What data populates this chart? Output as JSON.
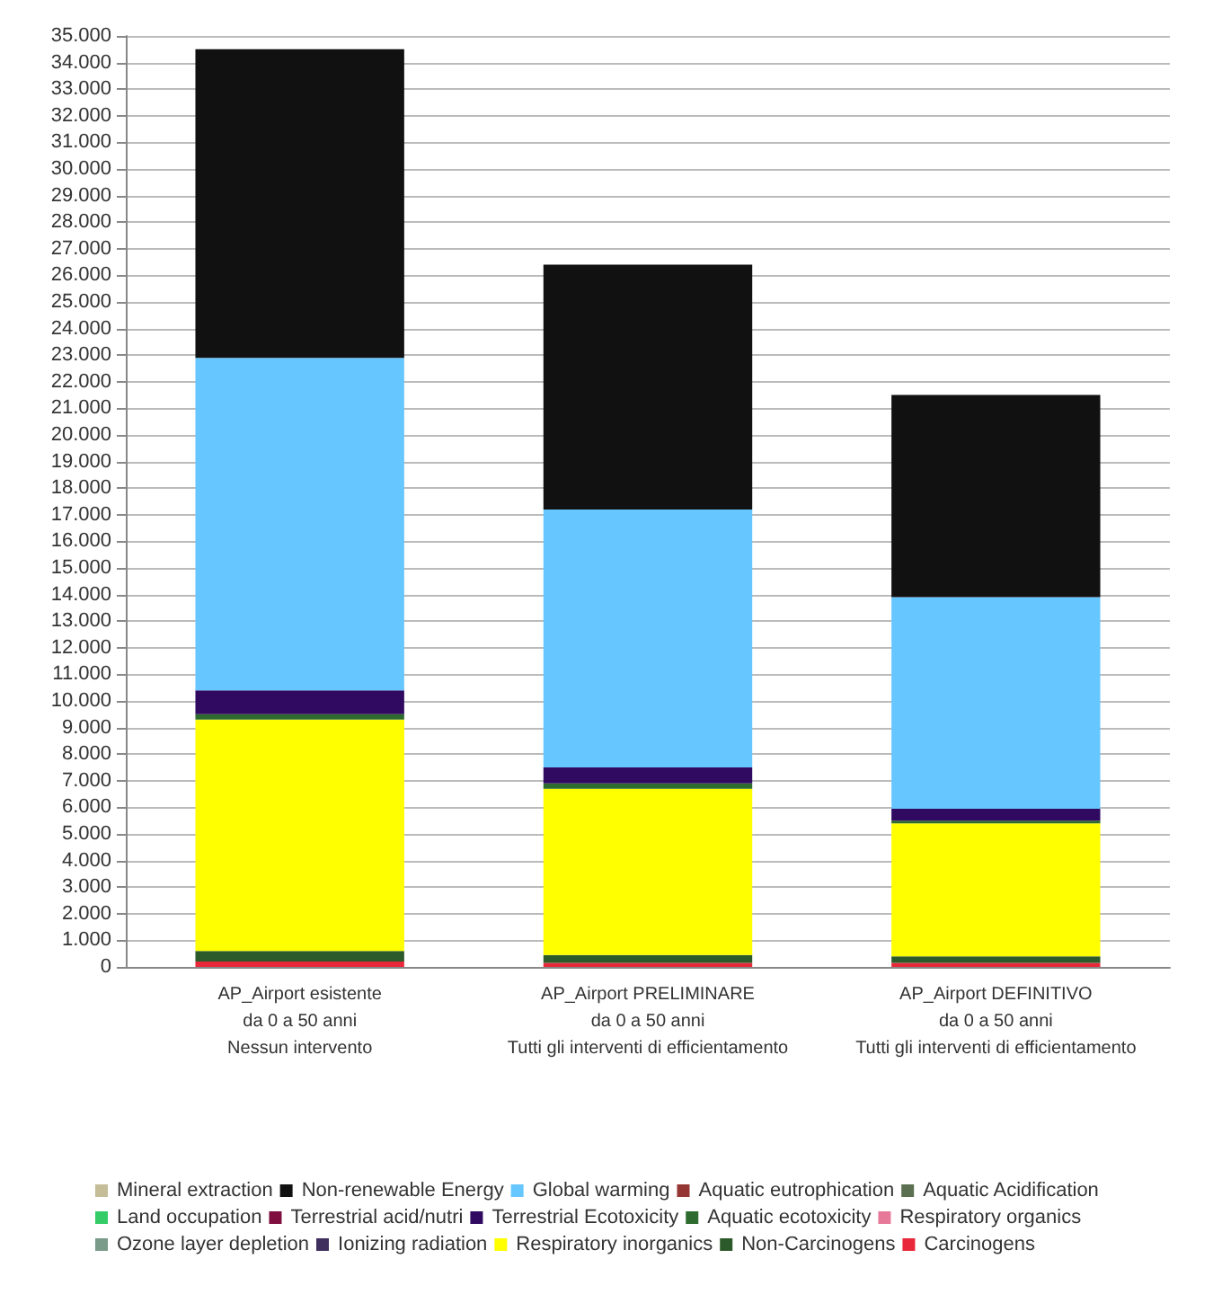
{
  "chart_data": {
    "type": "bar",
    "stacked": true,
    "categories": [
      "AP_Airport esistente\nda 0 a 50 anni\nNessun intervento",
      "AP_Airport PRELIMINARE\nda 0 a 50 anni\nTutti gli interventi di efficientamento",
      "AP_Airport DEFINITIVO\nda 0 a 50 anni\nTutti gli interventi di efficientamento"
    ],
    "series": [
      {
        "name": "Carcinogens",
        "color": "#e8283a",
        "values": [
          200,
          150,
          150
        ]
      },
      {
        "name": "Non-Carcinogens",
        "color": "#2d5a2a",
        "values": [
          400,
          300,
          250
        ]
      },
      {
        "name": "Respiratory inorganics",
        "color": "#ffff00",
        "values": [
          8700,
          6250,
          5000
        ]
      },
      {
        "name": "Ionizing radiation",
        "color": "#3f2f5f",
        "values": [
          0,
          0,
          0
        ]
      },
      {
        "name": "Ozone layer depletion",
        "color": "#7a9a8a",
        "values": [
          0,
          0,
          0
        ]
      },
      {
        "name": "Respiratory organics",
        "color": "#e6799a",
        "values": [
          0,
          0,
          0
        ]
      },
      {
        "name": "Aquatic ecotoxicity",
        "color": "#2e6b2e",
        "values": [
          200,
          200,
          100
        ]
      },
      {
        "name": "Terrestrial Ecotoxicity",
        "color": "#300a60",
        "values": [
          900,
          600,
          450
        ]
      },
      {
        "name": "Terrestrial acid/nutri",
        "color": "#7f0f3f",
        "values": [
          0,
          0,
          0
        ]
      },
      {
        "name": "Land occupation",
        "color": "#33cc66",
        "values": [
          0,
          0,
          0
        ]
      },
      {
        "name": "Aquatic Acidification",
        "color": "#5a7050",
        "values": [
          0,
          0,
          0
        ]
      },
      {
        "name": "Aquatic eutrophication",
        "color": "#953735",
        "values": [
          0,
          0,
          0
        ]
      },
      {
        "name": "Global warming",
        "color": "#66c6ff",
        "values": [
          12500,
          9700,
          7950
        ]
      },
      {
        "name": "Non-renewable Energy",
        "color": "#111111",
        "values": [
          11600,
          9200,
          7600
        ]
      },
      {
        "name": "Mineral extraction",
        "color": "#c4bd97",
        "values": [
          0,
          0,
          0
        ]
      }
    ],
    "ylim": [
      0,
      35000
    ],
    "yticks": [
      {
        "value": 0,
        "label": "0"
      },
      {
        "value": 1000,
        "label": "1.000"
      },
      {
        "value": 2000,
        "label": "2.000"
      },
      {
        "value": 3000,
        "label": "3.000"
      },
      {
        "value": 4000,
        "label": "4.000"
      },
      {
        "value": 5000,
        "label": "5.000"
      },
      {
        "value": 6000,
        "label": "6.000"
      },
      {
        "value": 7000,
        "label": "7.000"
      },
      {
        "value": 8000,
        "label": "8.000"
      },
      {
        "value": 9000,
        "label": "9.000"
      },
      {
        "value": 10000,
        "label": "10.000"
      },
      {
        "value": 11000,
        "label": "11.000"
      },
      {
        "value": 12000,
        "label": "12.000"
      },
      {
        "value": 13000,
        "label": "13.000"
      },
      {
        "value": 14000,
        "label": "14.000"
      },
      {
        "value": 15000,
        "label": "15.000"
      },
      {
        "value": 16000,
        "label": "16.000"
      },
      {
        "value": 17000,
        "label": "17.000"
      },
      {
        "value": 18000,
        "label": "18.000"
      },
      {
        "value": 19000,
        "label": "19.000"
      },
      {
        "value": 20000,
        "label": "20.000"
      },
      {
        "value": 21000,
        "label": "21.000"
      },
      {
        "value": 22000,
        "label": "22.000"
      },
      {
        "value": 23000,
        "label": "23.000"
      },
      {
        "value": 24000,
        "label": "24.000"
      },
      {
        "value": 25000,
        "label": "25.000"
      },
      {
        "value": 26000,
        "label": "26.000"
      },
      {
        "value": 27000,
        "label": "27.000"
      },
      {
        "value": 28000,
        "label": "28.000"
      },
      {
        "value": 29000,
        "label": "29.000"
      },
      {
        "value": 30000,
        "label": "30.000"
      },
      {
        "value": 31000,
        "label": "31.000"
      },
      {
        "value": 32000,
        "label": "32.000"
      },
      {
        "value": 33000,
        "label": "33.000"
      },
      {
        "value": 34000,
        "label": "34.000"
      },
      {
        "value": 35000,
        "label": "35.000"
      }
    ],
    "grid": "y",
    "legend": "bottom"
  }
}
